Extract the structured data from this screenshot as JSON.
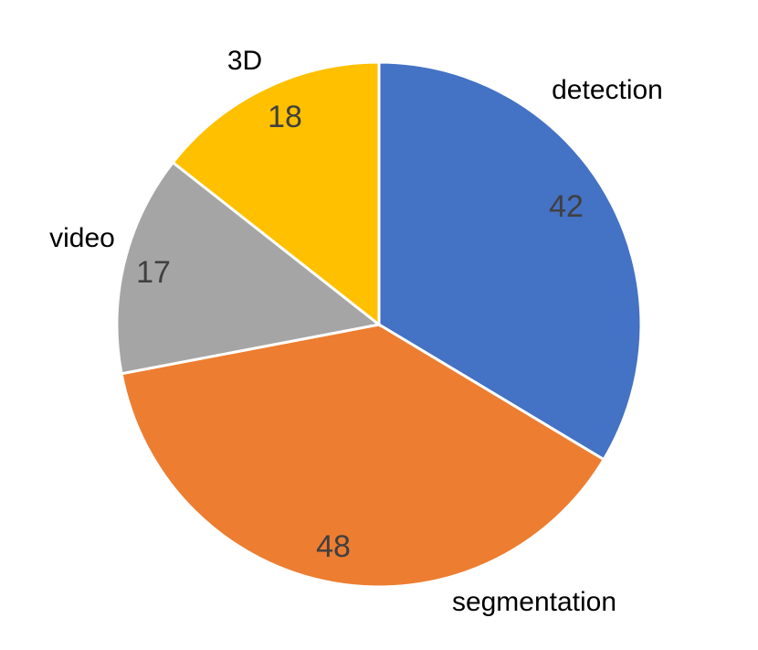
{
  "chart_data": {
    "type": "pie",
    "categories": [
      "detection",
      "segmentation",
      "video",
      "3D"
    ],
    "values": [
      42,
      48,
      17,
      18
    ],
    "colors": [
      "#4472c4",
      "#ed7d31",
      "#a5a5a5",
      "#ffc000"
    ]
  }
}
